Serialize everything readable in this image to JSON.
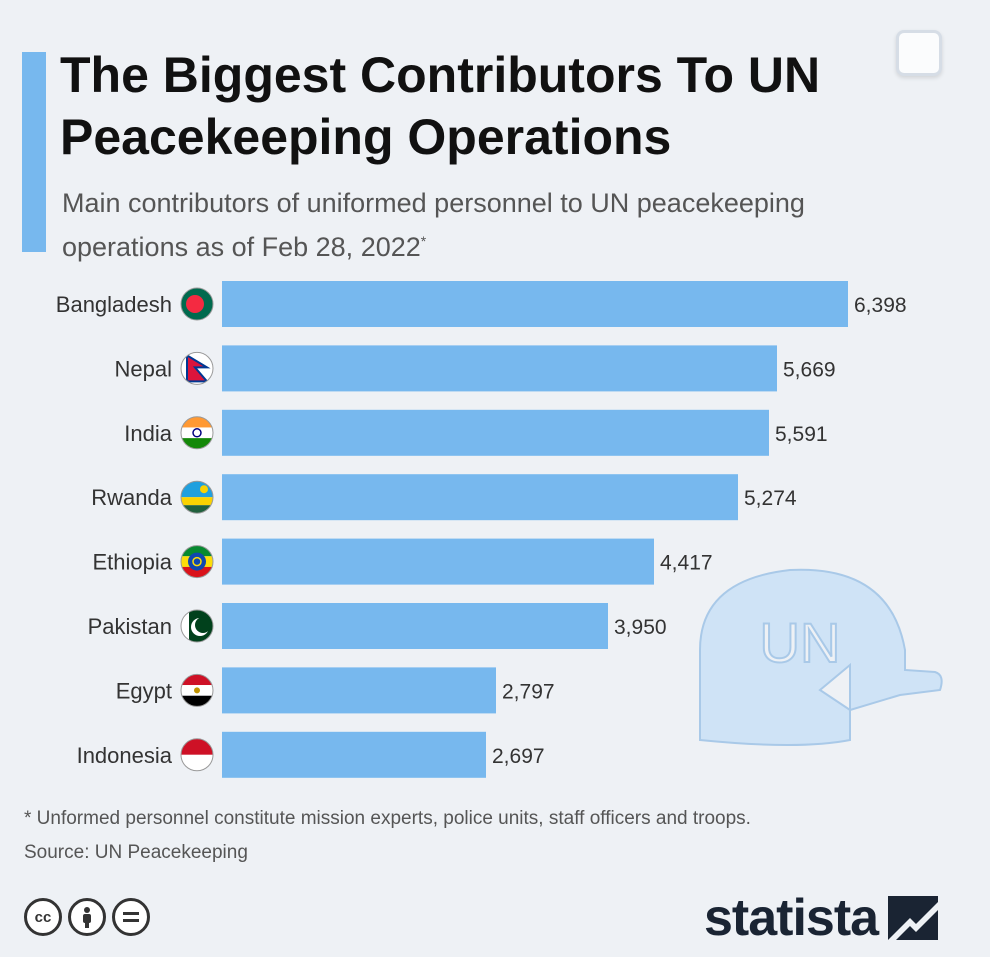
{
  "title": "The Biggest Contributors To UN Peacekeeping Operations",
  "subtitle": "Main contributors of uniformed personnel to UN peacekeeping operations as of Feb 28, 2022",
  "subtitle_marker": "*",
  "footnote": "* Unformed personnel constitute mission experts, police units, staff officers and troops.",
  "source": "Source: UN Peacekeeping",
  "helmet_text": "UN",
  "brand": "statista",
  "license_icons": [
    "cc-icon",
    "attribution-icon",
    "no-derivatives-icon"
  ],
  "license_cc_label": "cc",
  "colors": {
    "bar": "#77b8ee",
    "accent": "#77b8ee",
    "helmet": "#cfe3f6"
  },
  "chart_data": {
    "type": "bar",
    "orientation": "horizontal",
    "categories": [
      "Bangladesh",
      "Nepal",
      "India",
      "Rwanda",
      "Ethiopia",
      "Pakistan",
      "Egypt",
      "Indonesia"
    ],
    "values": [
      6398,
      5669,
      5591,
      5274,
      4417,
      3950,
      2797,
      2697
    ],
    "value_labels": [
      "6,398",
      "5,669",
      "5,591",
      "5,274",
      "4,417",
      "3,950",
      "2,797",
      "2,697"
    ],
    "flag_icons": [
      "bangladesh-flag-icon",
      "nepal-flag-icon",
      "india-flag-icon",
      "rwanda-flag-icon",
      "ethiopia-flag-icon",
      "pakistan-flag-icon",
      "egypt-flag-icon",
      "indonesia-flag-icon"
    ],
    "xlim": [
      0,
      6398
    ],
    "grid": false,
    "legend": "none"
  }
}
